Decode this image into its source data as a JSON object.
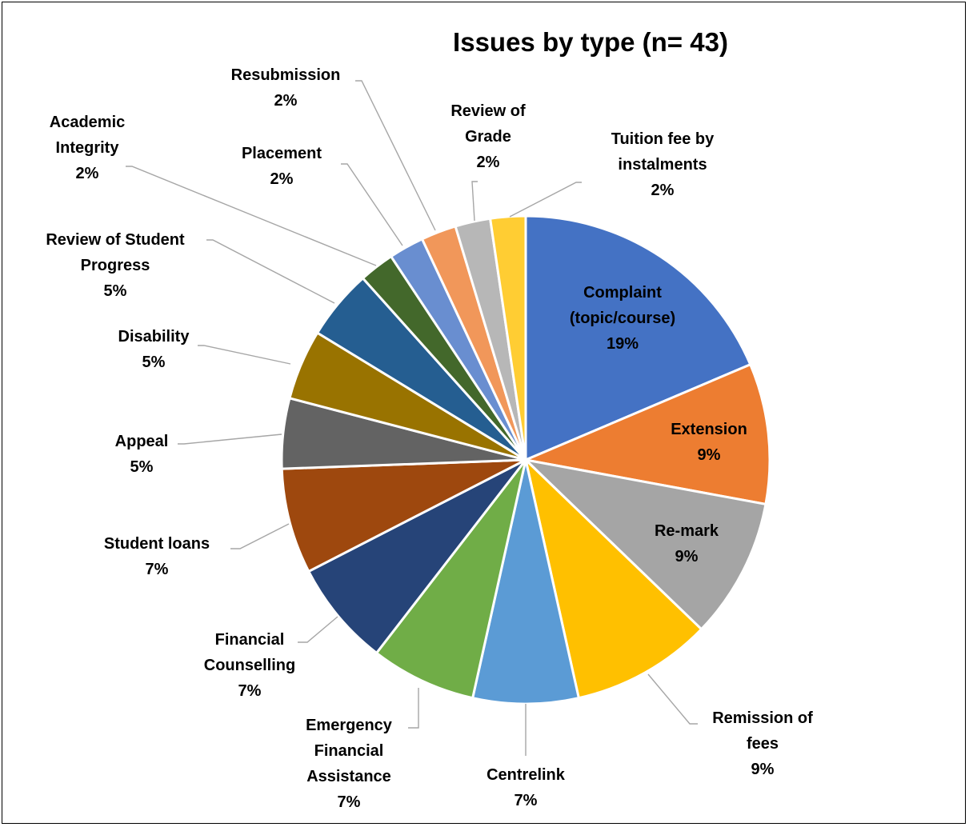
{
  "chart_data": {
    "type": "pie",
    "title": "Issues by type (n= 43)",
    "categories": [
      "Complaint (topic/course)",
      "Extension",
      "Re-mark",
      "Remission of fees",
      "Centrelink",
      "Emergency Financial Assistance",
      "Financial Counselling",
      "Student loans",
      "Appeal",
      "Disability",
      "Review of Student Progress",
      "Academic Integrity",
      "Placement",
      "Resubmission",
      "Review of Grade",
      "Tuition fee by instalments"
    ],
    "values": [
      8,
      4,
      4,
      4,
      3,
      3,
      3,
      3,
      2,
      2,
      2,
      1,
      1,
      1,
      1,
      1
    ],
    "percent_labels": [
      "19%",
      "9%",
      "9%",
      "9%",
      "7%",
      "7%",
      "7%",
      "7%",
      "5%",
      "5%",
      "5%",
      "2%",
      "2%",
      "2%",
      "2%",
      "2%"
    ],
    "colors": [
      "#4472C4",
      "#ED7D31",
      "#A5A5A5",
      "#FFC000",
      "#5B9BD5",
      "#70AD47",
      "#264478",
      "#9E480E",
      "#636363",
      "#997300",
      "#255E91",
      "#43682B",
      "#698ED0",
      "#F1975A",
      "#B7B7B7",
      "#FFCD33"
    ],
    "label_lines": [
      [
        "Complaint",
        "(topic/course)"
      ],
      [
        "Extension"
      ],
      [
        "Re-mark"
      ],
      [
        "Remission of",
        "fees"
      ],
      [
        "Centrelink"
      ],
      [
        "Emergency",
        "Financial",
        "Assistance"
      ],
      [
        "Financial",
        "Counselling"
      ],
      [
        "Student loans"
      ],
      [
        "Appeal"
      ],
      [
        "Disability"
      ],
      [
        "Review of Student",
        "Progress"
      ],
      [
        "Academic",
        "Integrity"
      ],
      [
        "Placement"
      ],
      [
        "Resubmission"
      ],
      [
        "Review of",
        "Grade"
      ],
      [
        "Tuition fee by",
        "instalments"
      ]
    ],
    "legend": "none",
    "start_angle": "12 o'clock, clockwise"
  }
}
